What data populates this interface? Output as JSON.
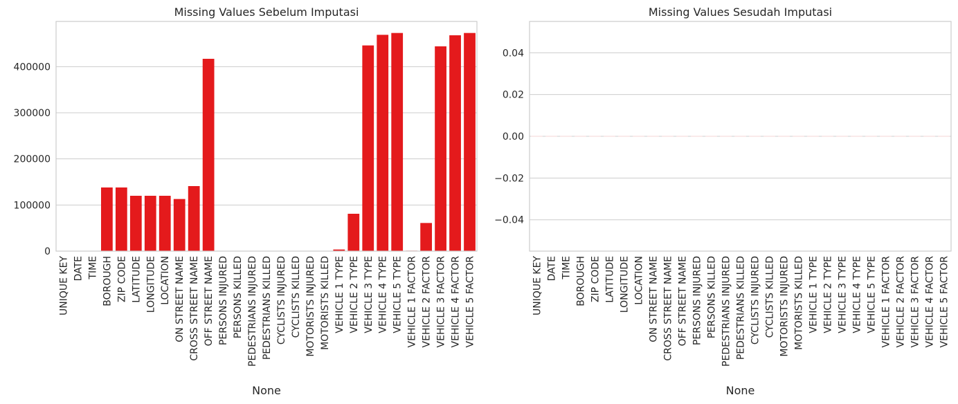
{
  "chart_data": [
    {
      "type": "bar",
      "title": "Missing Values Sebelum Imputasi",
      "xlabel": "None",
      "ylabel": "",
      "categories": [
        "UNIQUE KEY",
        "DATE",
        "TIME",
        "BOROUGH",
        "ZIP CODE",
        "LATITUDE",
        "LONGITUDE",
        "LOCATION",
        "ON STREET NAME",
        "CROSS STREET NAME",
        "OFF STREET NAME",
        "PERSONS INJURED",
        "PERSONS KILLED",
        "PEDESTRIANS INJURED",
        "PEDESTRIANS KILLED",
        "CYCLISTS INJURED",
        "CYCLISTS KILLED",
        "MOTORISTS INJURED",
        "MOTORISTS KILLED",
        "VEHICLE 1 TYPE",
        "VEHICLE 2 TYPE",
        "VEHICLE 3 TYPE",
        "VEHICLE 4 TYPE",
        "VEHICLE 5 TYPE",
        "VEHICLE 1 FACTOR",
        "VEHICLE 2 FACTOR",
        "VEHICLE 3 FACTOR",
        "VEHICLE 4 FACTOR",
        "VEHICLE 5 FACTOR"
      ],
      "values": [
        0,
        0,
        0,
        138000,
        138000,
        120000,
        120000,
        120000,
        113000,
        141000,
        417000,
        0,
        0,
        0,
        0,
        0,
        0,
        0,
        0,
        3500,
        81000,
        446000,
        469000,
        473000,
        1000,
        61000,
        444000,
        468000,
        473000
      ],
      "yticks": [
        0,
        100000,
        200000,
        300000,
        400000
      ],
      "ytick_labels": [
        "0",
        "100000",
        "200000",
        "300000",
        "400000"
      ],
      "ylim": [
        0,
        498000
      ],
      "bar_color": "#e41a1c",
      "grid": "horizontal"
    },
    {
      "type": "bar",
      "title": "Missing Values Sesudah Imputasi",
      "xlabel": "None",
      "ylabel": "",
      "categories": [
        "UNIQUE KEY",
        "DATE",
        "TIME",
        "BOROUGH",
        "ZIP CODE",
        "LATITUDE",
        "LONGITUDE",
        "LOCATION",
        "ON STREET NAME",
        "CROSS STREET NAME",
        "OFF STREET NAME",
        "PERSONS INJURED",
        "PERSONS KILLED",
        "PEDESTRIANS INJURED",
        "PEDESTRIANS KILLED",
        "CYCLISTS INJURED",
        "CYCLISTS KILLED",
        "MOTORISTS INJURED",
        "MOTORISTS KILLED",
        "VEHICLE 1 TYPE",
        "VEHICLE 2 TYPE",
        "VEHICLE 3 TYPE",
        "VEHICLE 4 TYPE",
        "VEHICLE 5 TYPE",
        "VEHICLE 1 FACTOR",
        "VEHICLE 2 FACTOR",
        "VEHICLE 3 FACTOR",
        "VEHICLE 4 FACTOR",
        "VEHICLE 5 FACTOR"
      ],
      "values": [
        0,
        0,
        0,
        0,
        0,
        0,
        0,
        0,
        0,
        0,
        0,
        0,
        0,
        0,
        0,
        0,
        0,
        0,
        0,
        0,
        0,
        0,
        0,
        0,
        0,
        0,
        0,
        0,
        0
      ],
      "yticks": [
        -0.04,
        -0.02,
        0.0,
        0.02,
        0.04
      ],
      "ytick_labels": [
        "−0.04",
        "−0.02",
        "0.00",
        "0.02",
        "0.04"
      ],
      "ylim": [
        -0.055,
        0.055
      ],
      "bar_color": "#e41a1c",
      "grid": "horizontal"
    }
  ]
}
